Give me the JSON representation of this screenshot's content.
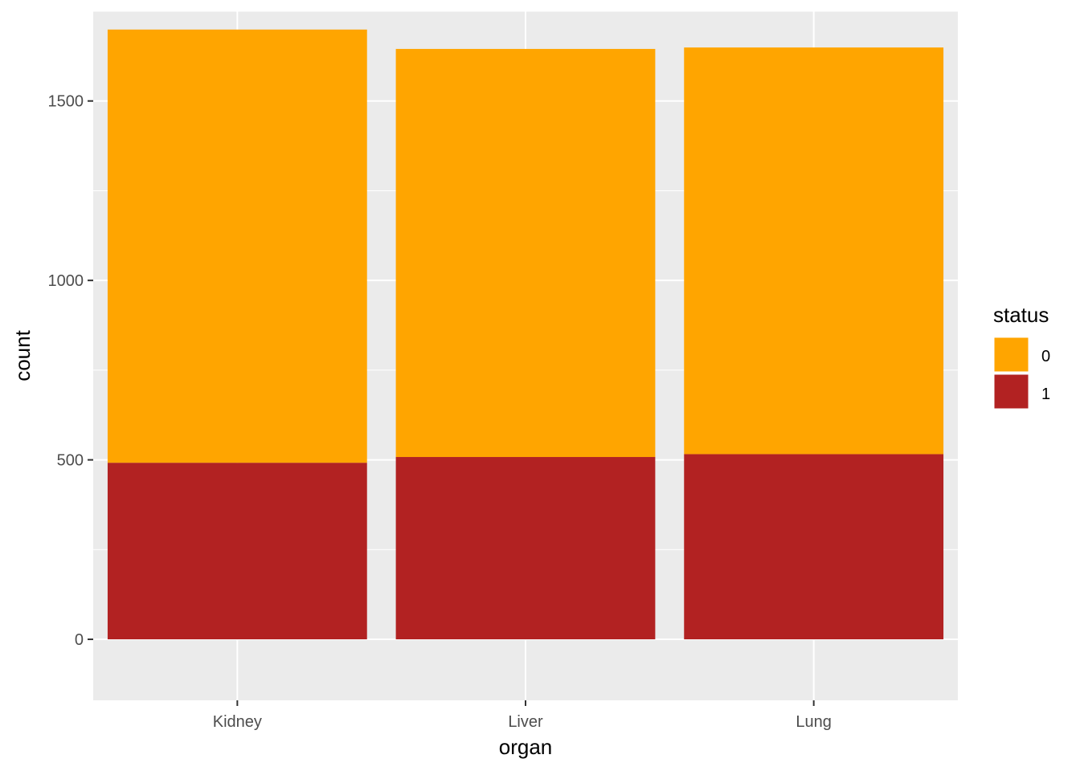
{
  "chart_data": {
    "type": "bar",
    "stacked": true,
    "categories": [
      "Kidney",
      "Liver",
      "Lung"
    ],
    "series": [
      {
        "name": "1",
        "values": [
          492,
          508,
          516
        ],
        "color": "#b22222"
      },
      {
        "name": "0",
        "values": [
          1207,
          1137,
          1133
        ],
        "color": "#ffa500"
      }
    ],
    "xlabel": "organ",
    "ylabel": "count",
    "ylim": [
      -170,
      1750
    ],
    "yticks": [
      0,
      500,
      1000,
      1500
    ],
    "yticks_minor": [
      250,
      750,
      1250,
      1750
    ],
    "ytick_labels": [
      "0",
      "500",
      "1000",
      "1500"
    ],
    "grid": true,
    "panel_background": "#ebebeb",
    "legend": {
      "title": "status",
      "position": "right",
      "items": [
        {
          "label": "0",
          "color": "#ffa500"
        },
        {
          "label": "1",
          "color": "#b22222"
        }
      ]
    }
  }
}
